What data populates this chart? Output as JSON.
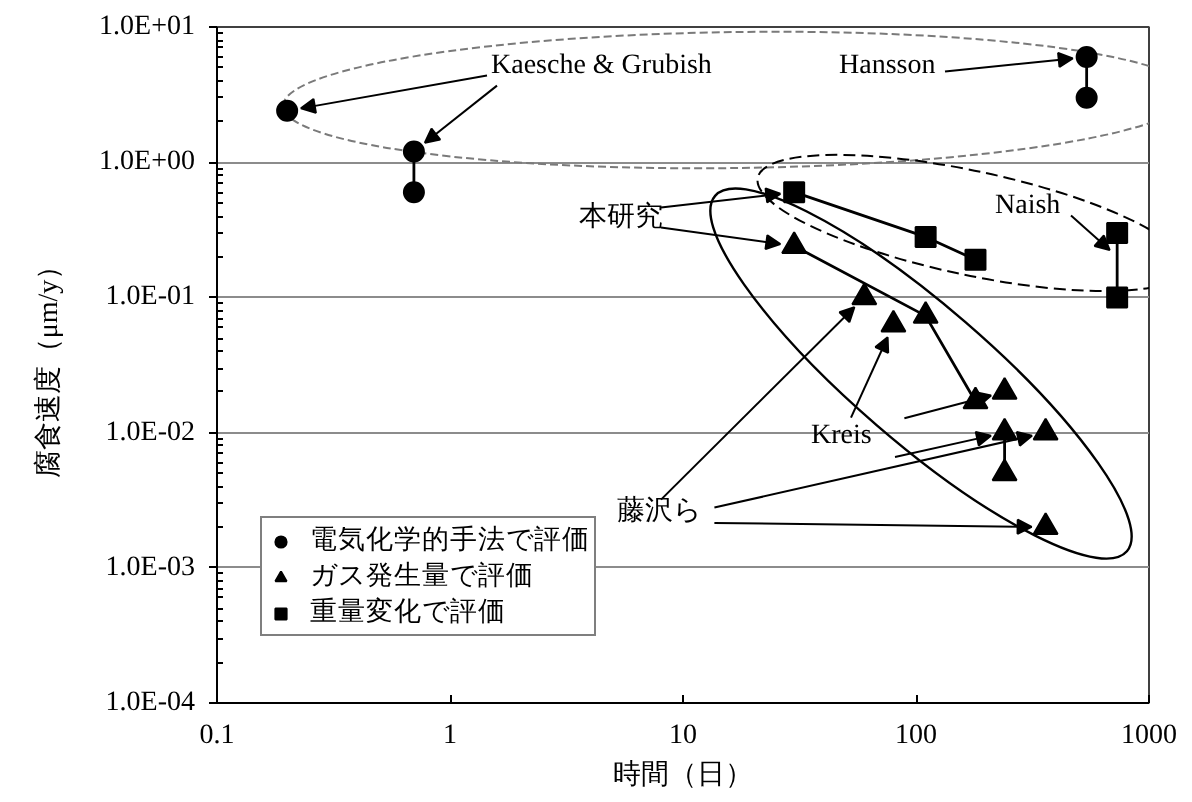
{
  "chart_data": {
    "type": "scatter",
    "xlabel": "時間（日）",
    "ylabel": "腐食速度（μm/y）",
    "log": "xy",
    "xlim": [
      0.1,
      1000
    ],
    "ylim": [
      0.0001,
      10
    ],
    "xticks": [
      0.1,
      1,
      10,
      100,
      1000
    ],
    "yticks": [
      {
        "value": 0.0001,
        "label": "1.0E-04"
      },
      {
        "value": 0.001,
        "label": "1.0E-03"
      },
      {
        "value": 0.01,
        "label": "1.0E-02"
      },
      {
        "value": 0.1,
        "label": "1.0E-01"
      },
      {
        "value": 1,
        "label": "1.0E+00"
      },
      {
        "value": 10,
        "label": "1.0E+01"
      }
    ],
    "grid": "y",
    "legend": "bottom left",
    "series": [
      {
        "name": "電気化学的手法で評価",
        "marker": "circle",
        "color": "#000000",
        "x": [
          0.2
        ],
        "values": [
          2.4
        ]
      },
      {
        "type": "line",
        "marker": "circle",
        "color": "#000000",
        "x": [
          0.7,
          0.7
        ],
        "values": [
          1.2,
          0.6
        ]
      },
      {
        "type": "line",
        "marker": "circle",
        "color": "#000000",
        "x": [
          540,
          540
        ],
        "values": [
          6,
          3
        ]
      },
      {
        "name": "ガス発生量で評価",
        "marker": "triangle",
        "color": "#000000",
        "x": [
          60,
          80,
          240,
          360,
          360
        ],
        "values": [
          0.1,
          0.063,
          0.02,
          0.01,
          0.002
        ]
      },
      {
        "type": "line",
        "marker": "triangle",
        "color": "#000000",
        "x": [
          30,
          110,
          180
        ],
        "values": [
          0.24,
          0.073,
          0.017
        ]
      },
      {
        "type": "line",
        "marker": "triangle",
        "color": "#000000",
        "x": [
          240,
          240
        ],
        "values": [
          0.01,
          0.005
        ]
      },
      {
        "name": "重量変化で評価",
        "type": "line",
        "marker": "square",
        "color": "#000000",
        "x": [
          30,
          110,
          180
        ],
        "values": [
          0.6,
          0.28,
          0.19
        ]
      },
      {
        "type": "line",
        "marker": "square",
        "color": "#000000",
        "x": [
          730,
          730
        ],
        "values": [
          0.3,
          0.1
        ]
      }
    ],
    "annotations": [
      {
        "text": "Kaesche & Grubish",
        "x": 0.2,
        "y": 2.4
      },
      {
        "text": "Hansson",
        "x": 540,
        "y": 6
      },
      {
        "text": "Naish",
        "x": 730,
        "y": 0.2
      },
      {
        "text": "本研究",
        "x": 30,
        "y": 0.6
      },
      {
        "text": "Kreis",
        "x": 80,
        "y": 0.063
      },
      {
        "text": "藤沢ら",
        "x": 60,
        "y": 0.1
      }
    ]
  }
}
